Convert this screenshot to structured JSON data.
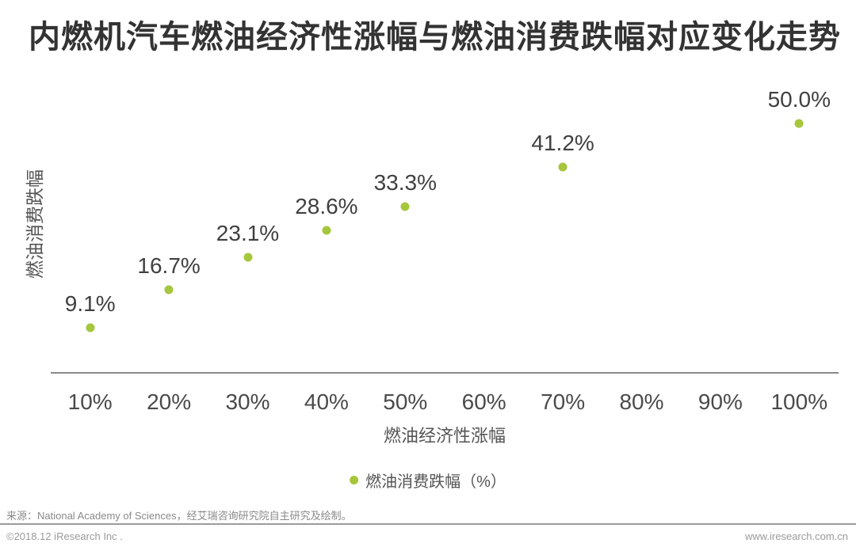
{
  "title": "内燃机汽车燃油经济性涨幅与燃油消费跌幅对应变化走势",
  "colors": {
    "accent_green": "#a6c63c",
    "title_text": "#333333",
    "point_label_text": "#404040",
    "axis_text": "#4a4a4a",
    "muted_text": "#8a8a8a"
  },
  "chart_data": {
    "type": "scatter",
    "x": [
      10,
      20,
      30,
      40,
      50,
      70,
      100
    ],
    "y": [
      9.1,
      16.7,
      23.1,
      28.6,
      33.3,
      41.2,
      50.0
    ],
    "point_labels": [
      "9.1%",
      "16.7%",
      "23.1%",
      "28.6%",
      "33.3%",
      "41.2%",
      "50.0%"
    ],
    "x_tick_values": [
      10,
      20,
      30,
      40,
      50,
      60,
      70,
      80,
      90,
      100
    ],
    "x_tick_labels": [
      "10%",
      "20%",
      "30%",
      "40%",
      "50%",
      "60%",
      "70%",
      "80%",
      "90%",
      "100%"
    ],
    "title": "内燃机汽车燃油经济性涨幅与燃油消费跌幅对应变化走势",
    "xlabel": "燃油经济性涨幅",
    "ylabel": "燃油消费跌幅",
    "ylim": [
      0,
      60
    ],
    "grid": false,
    "marker_color": "#a6c63c",
    "legend_position": "bottom-center",
    "legend": [
      {
        "label": "燃油消费跌幅（%）",
        "color": "#a6c63c",
        "marker": "circle"
      }
    ]
  },
  "footer": {
    "source": "来源：National Academy of Sciences，经艾瑞咨询研究院自主研究及绘制。",
    "copyright": "©2018.12 iResearch Inc .",
    "website": "www.iresearch.com.cn"
  }
}
